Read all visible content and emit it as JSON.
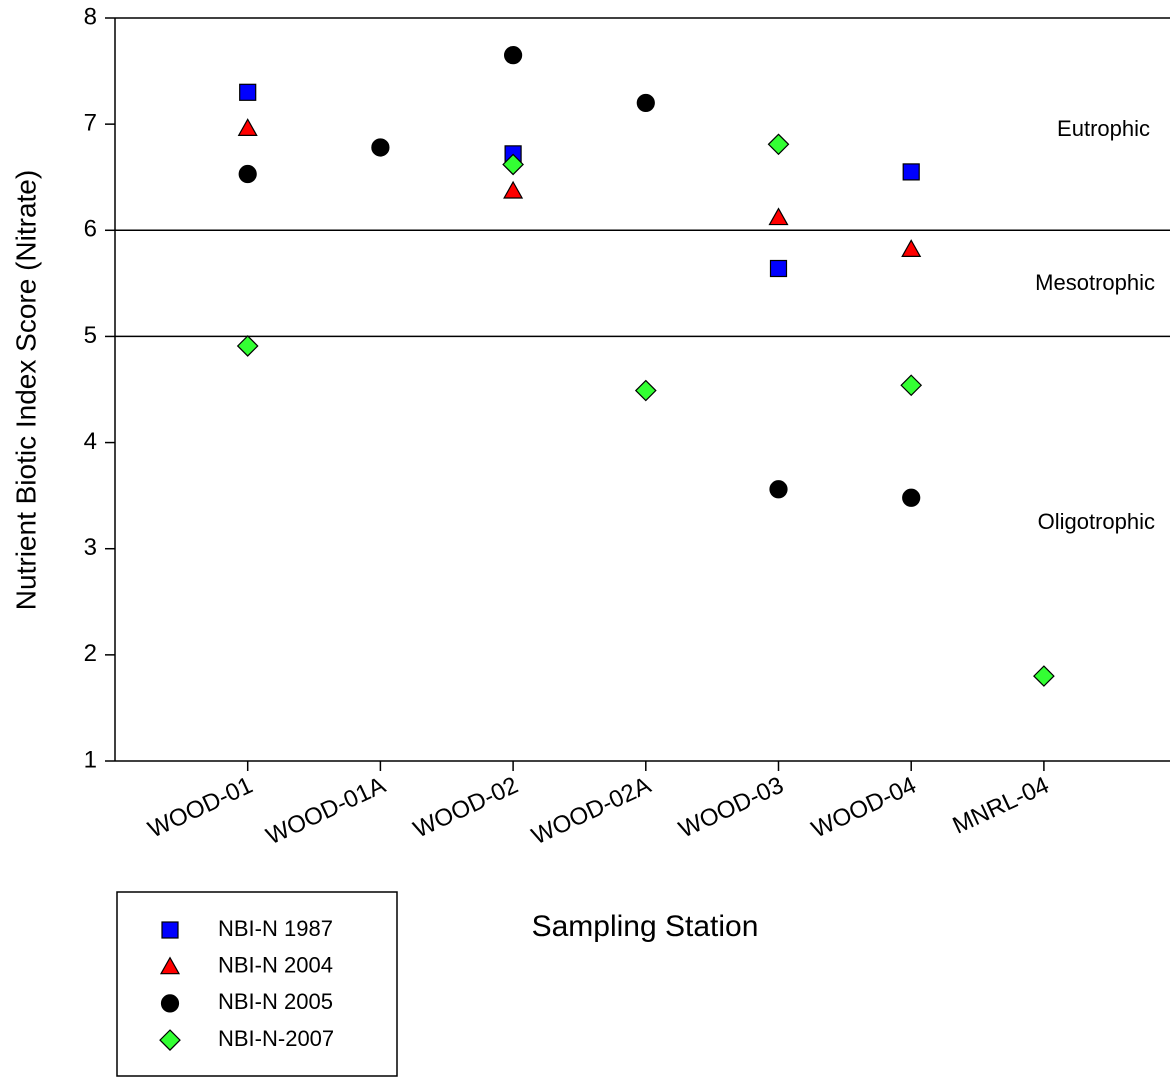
{
  "chart_data": {
    "type": "scatter",
    "x_label": "Sampling Station",
    "y_label": "Nutrient Biotic Index Score (Nitrate)",
    "categories": [
      "WOOD-01",
      "WOOD-01A",
      "WOOD-02",
      "WOOD-02A",
      "WOOD-03",
      "WOOD-04",
      "MNRL-04"
    ],
    "ylim": [
      1,
      8
    ],
    "yticks": [
      1,
      2,
      3,
      4,
      5,
      6,
      7,
      8
    ],
    "reference_lines": [
      6,
      5
    ],
    "annotations": [
      "Eutrophic",
      "Mesotrophic",
      "Oligotrophic"
    ],
    "legend": "lower left outside",
    "series": [
      {
        "name": "NBI-N 1987",
        "color": "#0000ff",
        "marker": "square",
        "values": [
          7.3,
          null,
          6.72,
          null,
          5.64,
          6.55,
          null
        ]
      },
      {
        "name": "NBI-N 2004",
        "color": "#ff0000",
        "marker": "triangle",
        "values": [
          6.96,
          null,
          6.37,
          null,
          6.12,
          5.82,
          null
        ]
      },
      {
        "name": "NBI-N 2005",
        "color": "#000000",
        "marker": "circle",
        "values": [
          6.53,
          6.78,
          7.65,
          7.2,
          3.56,
          3.48,
          null
        ]
      },
      {
        "name": "NBI-N-2007",
        "color": "#33ff33",
        "marker": "diamond",
        "values": [
          4.91,
          null,
          6.62,
          4.49,
          6.81,
          4.54,
          1.8
        ]
      }
    ]
  }
}
